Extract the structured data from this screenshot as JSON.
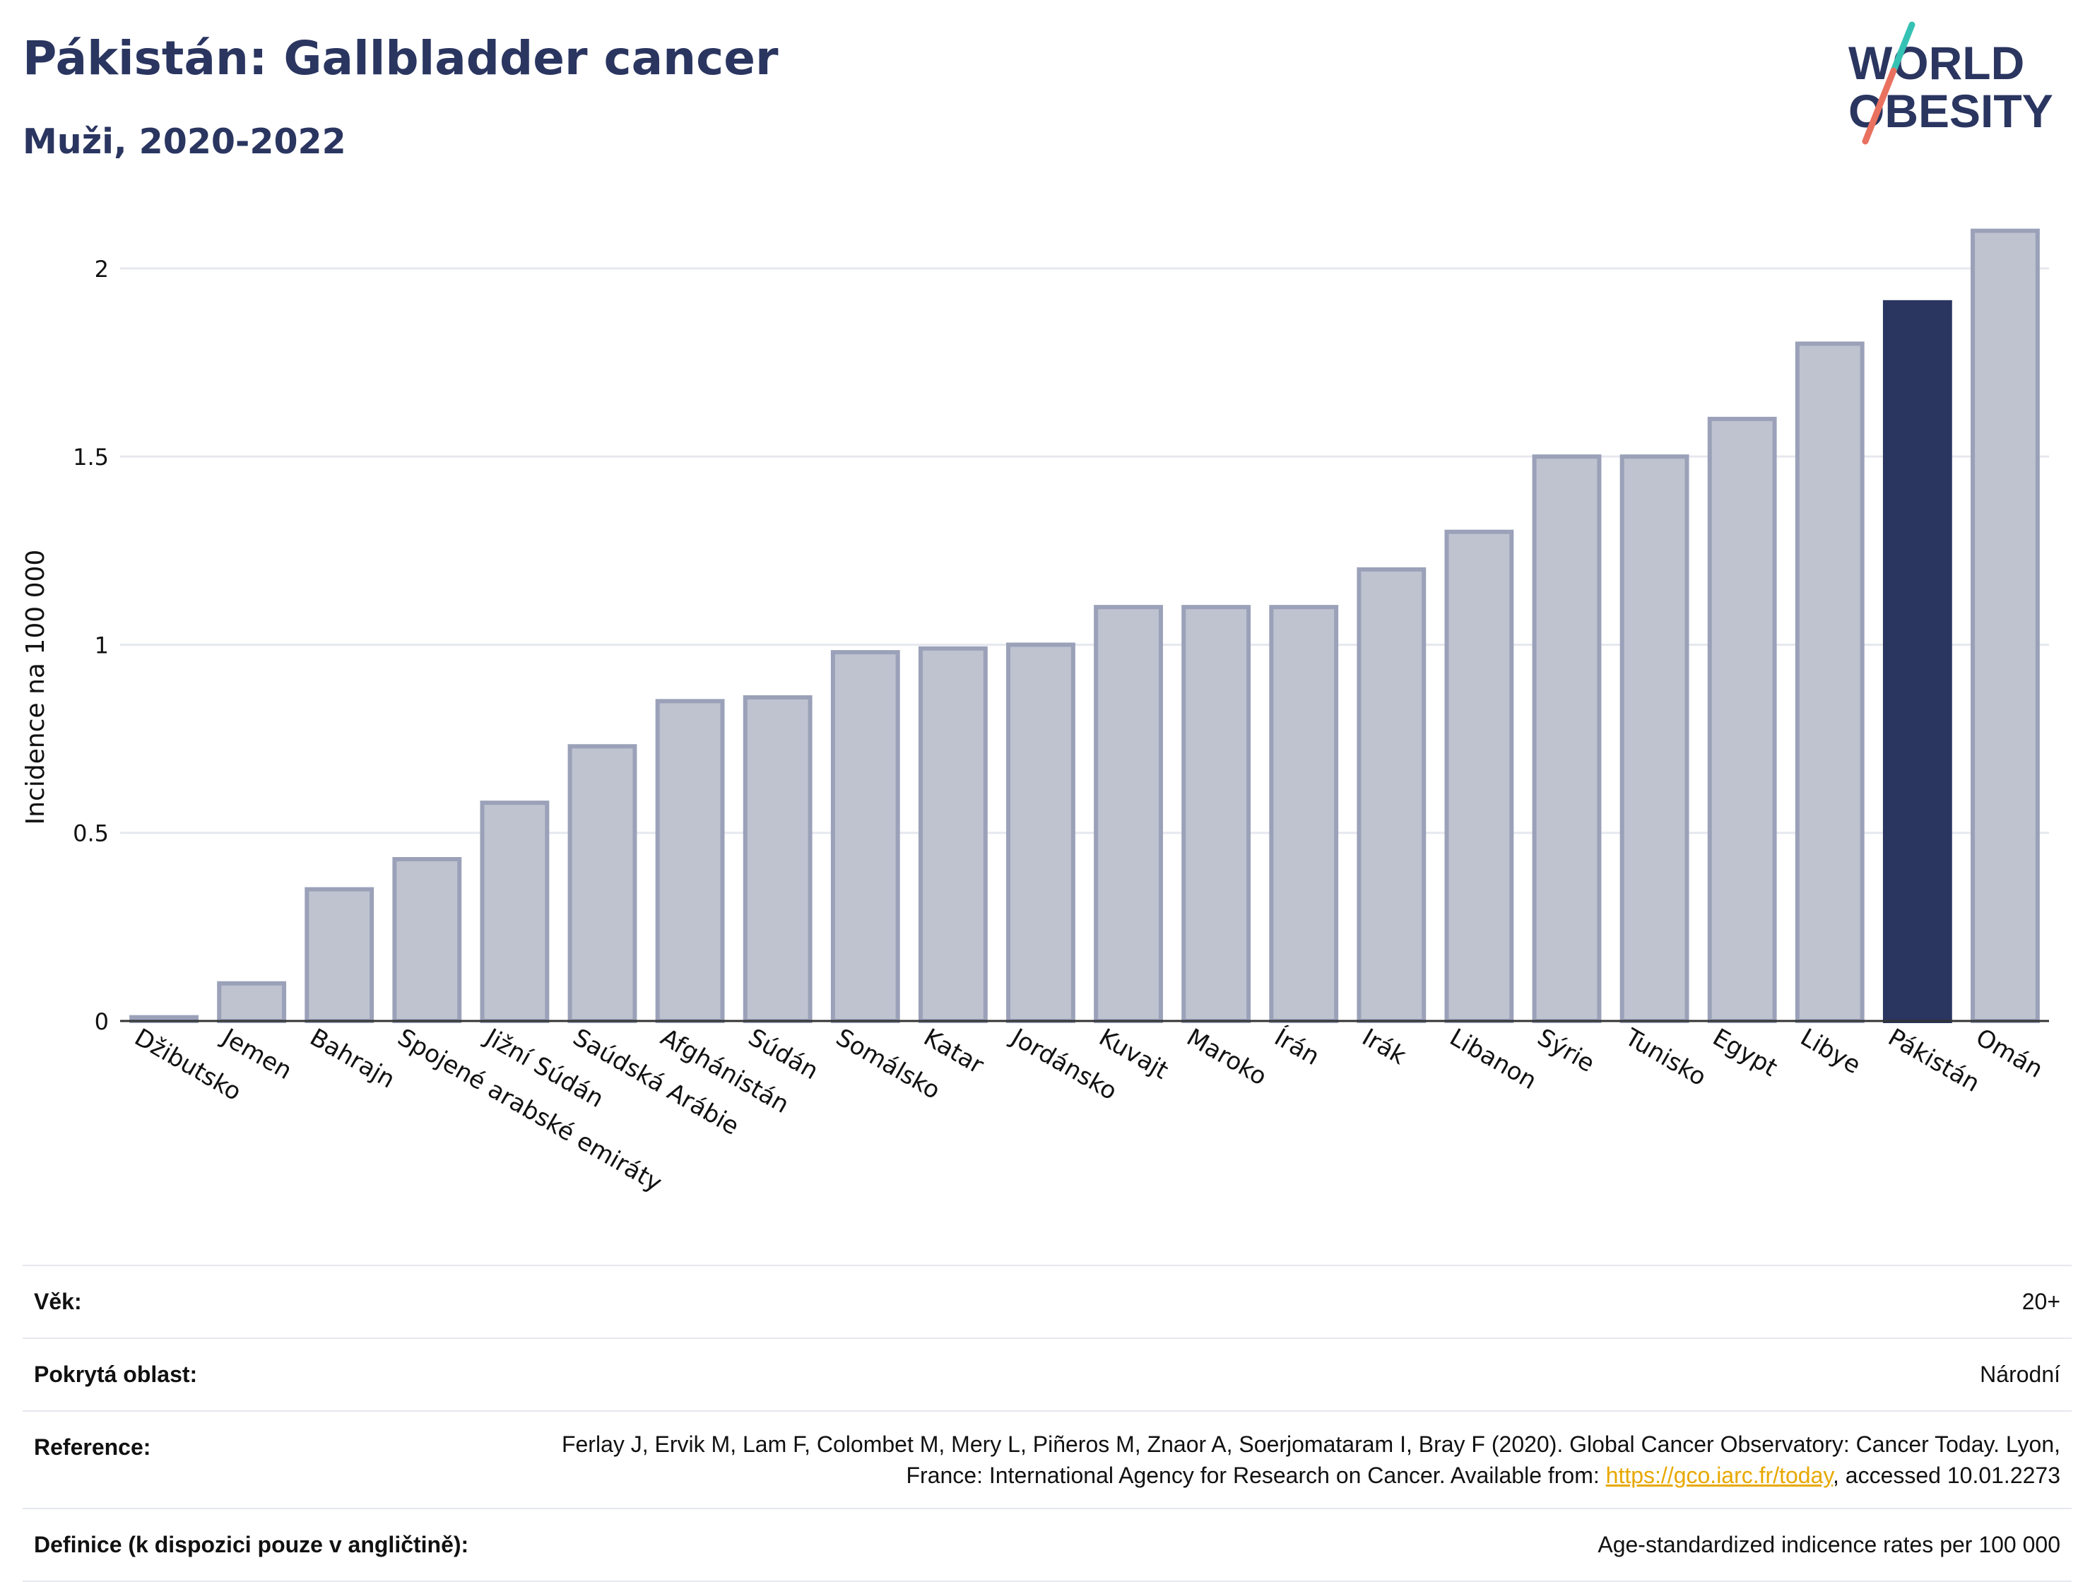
{
  "header": {
    "title": "Pákistán: Gallbladder cancer",
    "subtitle": "Muži, 2020-2022"
  },
  "logo": {
    "line1": "WORLD",
    "line2": "OBESITY"
  },
  "chart_data": {
    "type": "bar",
    "ylabel": "Incidence na 100 000",
    "xlabel": "",
    "ylim": [
      0,
      2.15
    ],
    "yticks": [
      0,
      0.5,
      1,
      1.5,
      2
    ],
    "ytick_labels": [
      "0",
      "0.5",
      "1",
      "1.5",
      "2"
    ],
    "grid": true,
    "categories": [
      "Džibutsko",
      "Jemen",
      "Bahrajn",
      "Spojené arabské emiráty",
      "Jižní Súdán",
      "Saúdská Arábie",
      "Afghánistán",
      "Súdán",
      "Somálsko",
      "Katar",
      "Jordánsko",
      "Kuvajt",
      "Maroko",
      "Írán",
      "Irák",
      "Libanon",
      "Sýrie",
      "Tunisko",
      "Egypt",
      "Libye",
      "Pákistán",
      "Omán"
    ],
    "values": [
      0.01,
      0.1,
      0.35,
      0.43,
      0.58,
      0.73,
      0.85,
      0.86,
      0.98,
      0.99,
      1.0,
      1.1,
      1.1,
      1.1,
      1.2,
      1.3,
      1.5,
      1.5,
      1.6,
      1.8,
      1.91,
      2.1
    ],
    "highlight": "Pákistán",
    "colors": {
      "bar": "#bfc3d0",
      "bar_border": "#9aa1b8",
      "highlight": "#2a3560"
    }
  },
  "info": {
    "age_label": "Věk:",
    "age_value": "20+",
    "coverage_label": "Pokrytá oblast:",
    "coverage_value": "Národní",
    "reference_label": "Reference:",
    "reference_text_1": "Ferlay J, Ervik M, Lam F, Colombet M, Mery L, Piñeros M, Znaor A, Soerjomataram I, Bray F (2020). Global Cancer Observatory: Cancer Today. Lyon, France: International Agency for Research on Cancer. Available from: ",
    "reference_link": "https://gco.iarc.fr/today",
    "reference_text_2": ", accessed 10.01.2273",
    "definition_label": "Definice (k dispozici pouze v angličtině):",
    "definition_value": "Age-standardized indicence rates per 100 000"
  }
}
